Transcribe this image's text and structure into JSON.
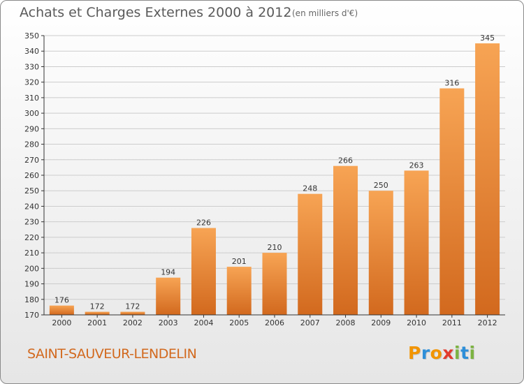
{
  "title": "Achats et Charges Externes 2000 à 2012",
  "subtitle": "(en milliers d'€)",
  "town": "SAINT-SAUVEUR-LENDELIN",
  "logo": {
    "letters": [
      "P",
      "r",
      "o",
      "x",
      "i",
      "t",
      "i"
    ],
    "colors": [
      "#f29400",
      "#2e8fd9",
      "#f29400",
      "#e23b2e",
      "#7cb342",
      "#2e8fd9",
      "#7cb342"
    ]
  },
  "colors": {
    "bar_light": "#f7a454",
    "bar_dark": "#d2691e",
    "axis": "#333333",
    "grid": "#cccccc"
  },
  "chart_data": {
    "type": "bar",
    "title": "Achats et Charges Externes 2000 à 2012",
    "subtitle": "(en milliers d'€)",
    "categories": [
      "2000",
      "2001",
      "2002",
      "2003",
      "2004",
      "2005",
      "2006",
      "2007",
      "2008",
      "2009",
      "2010",
      "2011",
      "2012"
    ],
    "values": [
      176,
      172,
      172,
      194,
      226,
      201,
      210,
      248,
      266,
      250,
      263,
      316,
      345
    ],
    "ylim": [
      170,
      350
    ],
    "yticks": [
      170,
      180,
      190,
      200,
      210,
      220,
      230,
      240,
      250,
      260,
      270,
      280,
      290,
      300,
      310,
      320,
      330,
      340,
      350
    ],
    "grid": true,
    "xlabel": "",
    "ylabel": ""
  }
}
